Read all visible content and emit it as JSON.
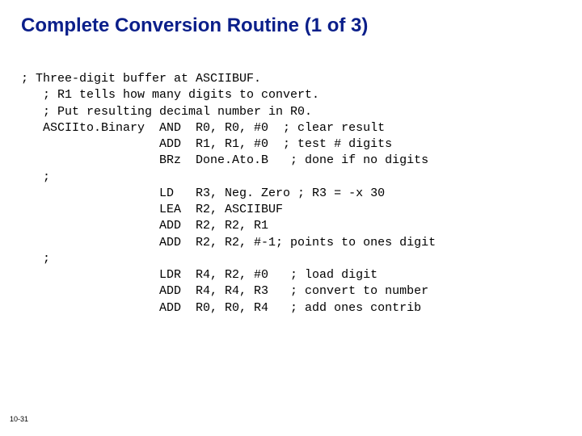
{
  "title": {
    "text": "Complete Conversion Routine (1 of 3)",
    "color": "#0b1f8a",
    "fontsize": 24
  },
  "code": {
    "color": "#000000",
    "fontsize": 15,
    "lines": [
      "; Three-digit buffer at ASCIIBUF.",
      "   ; R1 tells how many digits to convert.",
      "   ; Put resulting decimal number in R0.",
      "   ASCIIto.Binary  AND  R0, R0, #0  ; clear result",
      "                   ADD  R1, R1, #0  ; test # digits",
      "                   BRz  Done.Ato.B   ; done if no digits",
      "   ;",
      "                   LD   R3, Neg. Zero ; R3 = -x 30",
      "                   LEA  R2, ASCIIBUF",
      "                   ADD  R2, R2, R1",
      "                   ADD  R2, R2, #-1; points to ones digit",
      "   ;",
      "                   LDR  R4, R2, #0   ; load digit",
      "                   ADD  R4, R4, R3   ; convert to number",
      "                   ADD  R0, R0, R4   ; add ones contrib"
    ]
  },
  "pagenum": {
    "text": "10-31",
    "color": "#000000",
    "fontsize": 9
  }
}
